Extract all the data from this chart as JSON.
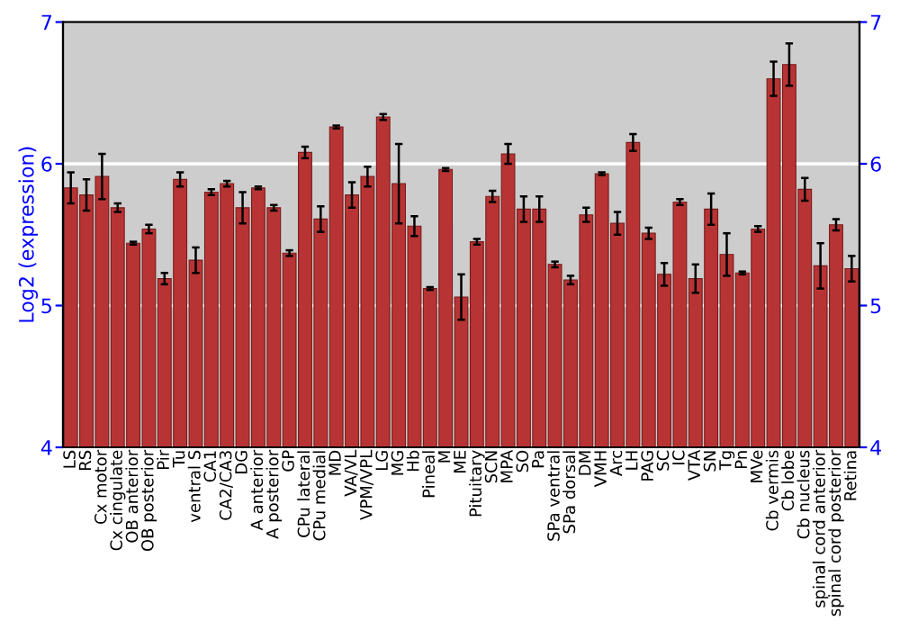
{
  "chart_data": {
    "type": "bar",
    "ylabel": "Log2 (expression)",
    "categories": [
      "LS",
      "RS",
      "Cx motor",
      "Cx cingulate",
      "OB anterior",
      "OB posterior",
      "Pir",
      "Tu",
      "ventral S",
      "CA1",
      "CA2/CA3",
      "DG",
      "A anterior",
      "A posterior",
      "GP",
      "CPu lateral",
      "CPu medial",
      "MD",
      "VA/VL",
      "VPM/VPL",
      "LG",
      "MG",
      "Hb",
      "Pineal",
      "M",
      "ME",
      "Pituitary",
      "SCN",
      "MPA",
      "SO",
      "Pa",
      "SPa ventral",
      "SPa dorsal",
      "DM",
      "VMH",
      "Arc",
      "LH",
      "PAG",
      "SC",
      "IC",
      "VTA",
      "SN",
      "Tg",
      "Pn",
      "MVe",
      "Cb vermis",
      "Cb lobe",
      "Cb nucleus",
      "spinal cord anterior",
      "spinal cord posterior",
      "Retina"
    ],
    "values": [
      5.83,
      5.78,
      5.91,
      5.69,
      5.44,
      5.54,
      5.19,
      5.89,
      5.32,
      5.8,
      5.86,
      5.69,
      5.83,
      5.69,
      5.37,
      6.08,
      5.61,
      6.26,
      5.78,
      5.91,
      6.33,
      5.86,
      5.56,
      5.12,
      5.96,
      5.06,
      5.45,
      5.77,
      6.07,
      5.68,
      5.68,
      5.29,
      5.18,
      5.64,
      5.93,
      5.58,
      6.15,
      5.51,
      5.22,
      5.73,
      5.19,
      5.68,
      5.36,
      5.23,
      5.54,
      6.6,
      6.7,
      5.82,
      5.28,
      5.57,
      5.26
    ],
    "errors": [
      0.11,
      0.11,
      0.16,
      0.03,
      0.01,
      0.03,
      0.04,
      0.05,
      0.09,
      0.02,
      0.02,
      0.11,
      0.01,
      0.02,
      0.02,
      0.04,
      0.09,
      0.01,
      0.09,
      0.07,
      0.02,
      0.28,
      0.07,
      0.01,
      0.01,
      0.16,
      0.02,
      0.04,
      0.07,
      0.09,
      0.09,
      0.02,
      0.03,
      0.05,
      0.01,
      0.08,
      0.06,
      0.04,
      0.08,
      0.02,
      0.1,
      0.11,
      0.15,
      0.01,
      0.02,
      0.12,
      0.15,
      0.08,
      0.16,
      0.04,
      0.09
    ],
    "color": "#b83434",
    "ylim": [
      4,
      7
    ],
    "yticks": [
      4,
      5,
      6,
      7
    ],
    "y2lim": [
      4,
      7
    ],
    "y2ticks": [
      4,
      5,
      6,
      7
    ],
    "grid": "y"
  }
}
